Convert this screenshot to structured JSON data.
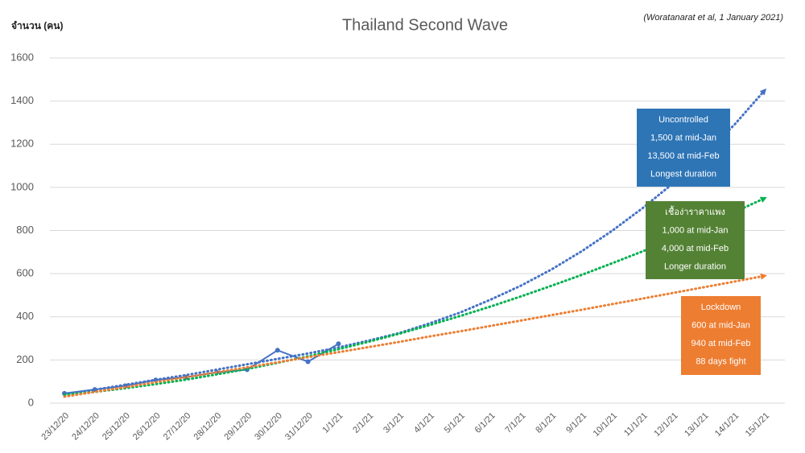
{
  "chart_data": {
    "type": "line",
    "title": "Thailand Second Wave",
    "source_note": "(Woratanarat et al, 1 January 2021)",
    "y_axis_label": "จำนวน (คน)",
    "categories": [
      "23/12/20",
      "24/12/20",
      "25/12/20",
      "26/12/20",
      "27/12/20",
      "28/12/20",
      "29/12/20",
      "30/12/20",
      "31/12/20",
      "1/1/21",
      "2/1/21",
      "3/1/21",
      "4/1/21",
      "5/1/21",
      "6/1/21",
      "7/1/21",
      "8/1/21",
      "9/1/21",
      "10/1/21",
      "11/1/21",
      "12/1/21",
      "13/1/21",
      "14/1/21",
      "15/1/21"
    ],
    "series": [
      {
        "color": "#4472c4",
        "style": "solid",
        "markers": true,
        "values": [
          45,
          63,
          80,
          107,
          120,
          143,
          155,
          245,
          192,
          275,
          null,
          null,
          null,
          null,
          null,
          null,
          null,
          null,
          null,
          null,
          null,
          null,
          null,
          null
        ]
      },
      {
        "color": "#4472c4",
        "style": "dotted",
        "arrow": true,
        "values": [
          40,
          62,
          85,
          108,
          130,
          155,
          180,
          205,
          230,
          258,
          290,
          325,
          370,
          420,
          480,
          545,
          620,
          705,
          800,
          905,
          1020,
          1150,
          1290,
          1450
        ]
      },
      {
        "color": "#00b050",
        "style": "dotted",
        "arrow": true,
        "values": [
          38,
          52,
          69,
          88,
          109,
          133,
          158,
          187,
          217,
          250,
          285,
          322,
          362,
          404,
          448,
          495,
          544,
          595,
          649,
          704,
          762,
          823,
          885,
          950
        ]
      },
      {
        "color": "#ed7d31",
        "style": "dotted",
        "arrow": true,
        "values": [
          30,
          52,
          74,
          97,
          120,
          143,
          166,
          189,
          213,
          236,
          260,
          284,
          309,
          333,
          358,
          383,
          408,
          433,
          459,
          485,
          511,
          537,
          563,
          590
        ]
      }
    ],
    "ylim": [
      0,
      1600
    ],
    "yticks": [
      0,
      200,
      400,
      600,
      800,
      1000,
      1200,
      1400,
      1600
    ],
    "grid": true,
    "annotations": [
      {
        "color": "#2e75b6",
        "lines": [
          "Uncontrolled",
          "1,500 at mid-Jan",
          "13,500 at mid-Feb",
          "Longest duration"
        ]
      },
      {
        "color": "#548235",
        "lines": [
          "เชื้อง่าราคาแพง",
          "1,000 at mid-Jan",
          "4,000 at mid-Feb",
          "Longer duration"
        ]
      },
      {
        "color": "#ed7d31",
        "lines": [
          "Lockdown",
          "600 at mid-Jan",
          "940 at mid-Feb",
          "88 days fight"
        ]
      }
    ]
  }
}
